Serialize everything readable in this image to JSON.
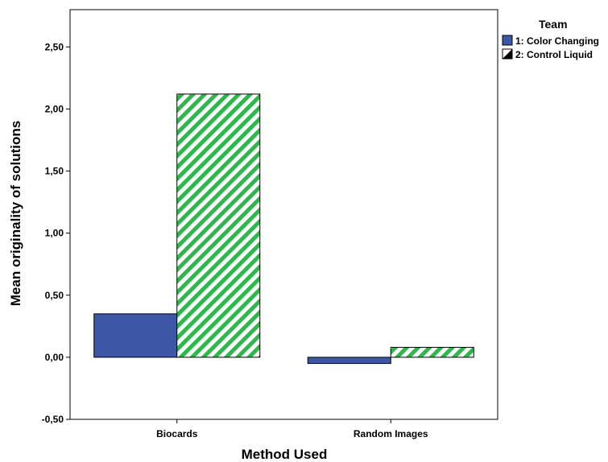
{
  "chart_data": {
    "type": "bar",
    "xlabel": "Method Used",
    "ylabel": "Mean originality of solutions",
    "ylim": [
      -0.5,
      2.8
    ],
    "yticks": [
      "-0,50",
      "0,00",
      "0,50",
      "1,00",
      "1,50",
      "2,00",
      "2,50"
    ],
    "ytick_values": [
      -0.5,
      0,
      0.5,
      1.0,
      1.5,
      2.0,
      2.5
    ],
    "categories": [
      "Biocards",
      "Random Images"
    ],
    "legend": {
      "title": "Team",
      "placement": "top-right"
    },
    "series": [
      {
        "name": "1: Color Changing",
        "values": [
          0.35,
          -0.05
        ],
        "color": "#3d56a6",
        "pattern": "solid"
      },
      {
        "name": "2: Control Liquid",
        "values": [
          2.12,
          0.08
        ],
        "color": "#2db84b",
        "pattern": "diagonal-stripes"
      }
    ],
    "grid": false
  }
}
